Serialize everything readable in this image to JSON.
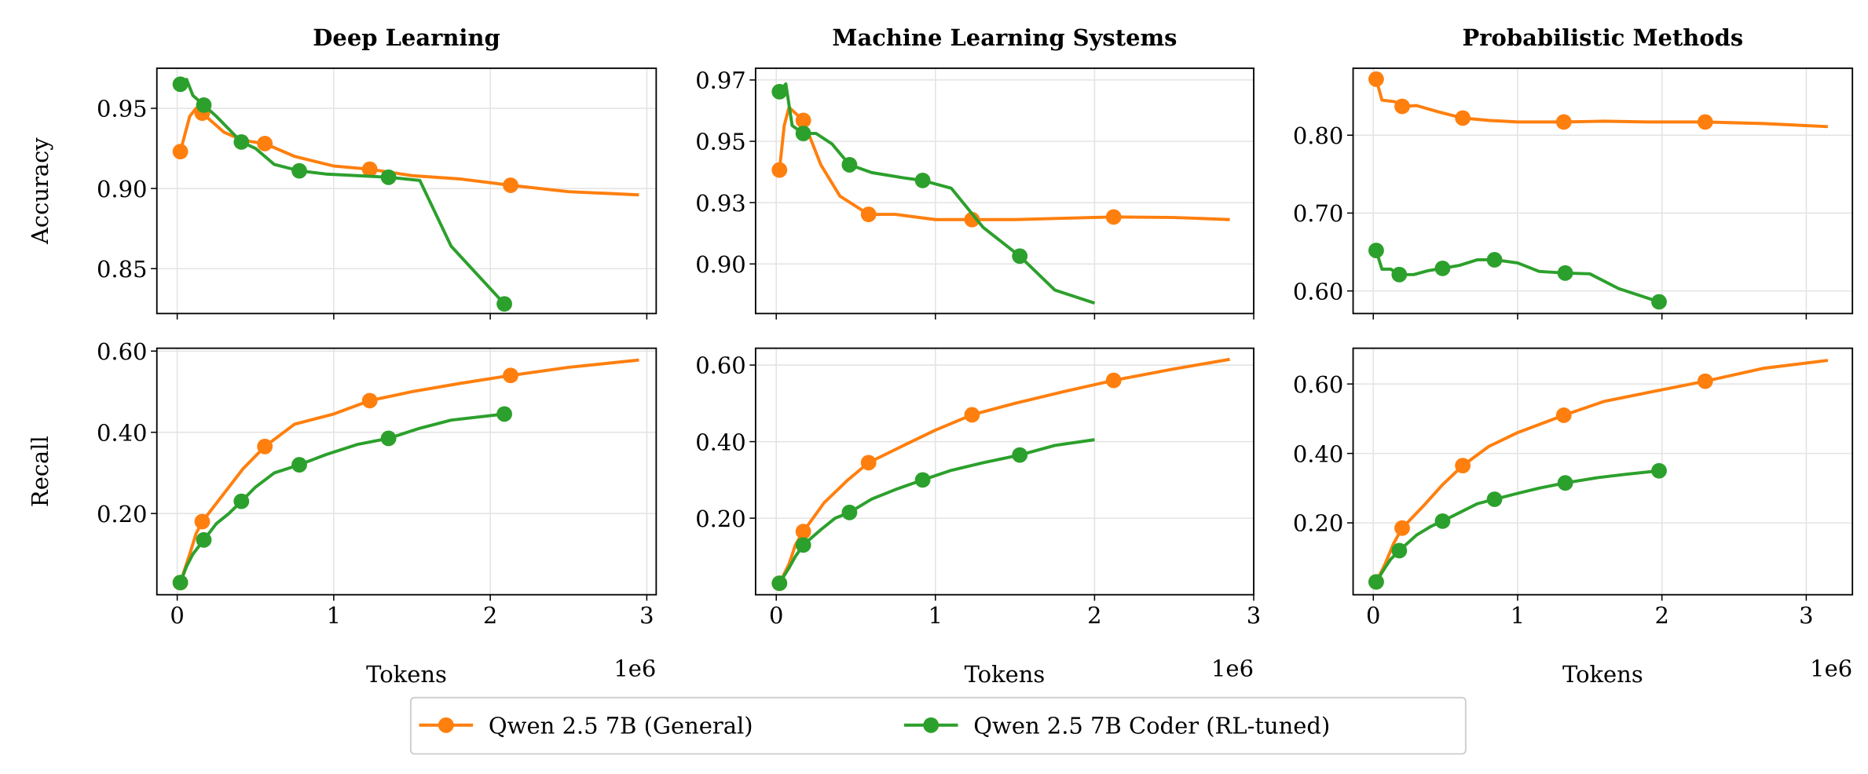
{
  "chart_data": [
    {
      "type": "line",
      "title": "Deep Learning",
      "ylabel": "Accuracy",
      "xlim": [
        -0.13,
        3.06
      ],
      "ylim": [
        0.822,
        0.975
      ],
      "xticks": [
        0,
        1,
        2,
        3
      ],
      "xticklabels": false,
      "yticks": [
        0.85,
        {
          "value": 0.9,
          "label": "0.90"
        },
        0.95
      ],
      "grid": true,
      "markevery": 3,
      "series": [
        {
          "color": "#ff7f0e",
          "x": [
            0.02,
            0.08,
            0.12,
            0.16,
            0.3,
            0.42,
            0.56,
            0.75,
            1.0,
            1.23,
            1.5,
            1.8,
            2.13,
            2.5,
            2.95
          ],
          "values": [
            0.923,
            0.945,
            0.95,
            0.947,
            0.935,
            0.93,
            0.928,
            0.92,
            0.914,
            0.912,
            0.908,
            0.906,
            0.902,
            0.898,
            0.896
          ]
        },
        {
          "color": "#2ca02c",
          "x": [
            0.02,
            0.06,
            0.1,
            0.17,
            0.25,
            0.33,
            0.41,
            0.5,
            0.62,
            0.78,
            0.95,
            1.15,
            1.35,
            1.55,
            1.75,
            2.09
          ],
          "values": [
            0.965,
            0.968,
            0.958,
            0.952,
            0.945,
            0.937,
            0.929,
            0.925,
            0.915,
            0.911,
            0.909,
            0.908,
            0.907,
            0.905,
            0.864,
            0.828
          ]
        }
      ]
    },
    {
      "type": "line",
      "title": "Machine Learning Systems",
      "xlim": [
        -0.13,
        3.0
      ],
      "ylim": [
        0.883,
        0.977
      ],
      "xticks": [
        0,
        1,
        2,
        3
      ],
      "xticklabels": false,
      "yticks": [
        {
          "value": 0.902,
          "label": "0.90"
        },
        {
          "value": 0.9255,
          "label": "0.93"
        },
        {
          "value": 0.949,
          "label": "0.95"
        },
        {
          "value": 0.9725,
          "label": "0.97"
        }
      ],
      "grid": true,
      "markevery": 3,
      "series": [
        {
          "color": "#ff7f0e",
          "x": [
            0.02,
            0.05,
            0.08,
            0.17,
            0.28,
            0.4,
            0.58,
            0.75,
            1.0,
            1.23,
            1.5,
            1.8,
            2.12,
            2.5,
            2.85
          ],
          "values": [
            0.938,
            0.955,
            0.962,
            0.957,
            0.94,
            0.928,
            0.921,
            0.921,
            0.919,
            0.919,
            0.919,
            0.9195,
            0.92,
            0.9198,
            0.919
          ]
        },
        {
          "color": "#2ca02c",
          "x": [
            0.02,
            0.06,
            0.1,
            0.17,
            0.25,
            0.35,
            0.46,
            0.6,
            0.8,
            0.92,
            1.1,
            1.3,
            1.53,
            1.75,
            2.0
          ],
          "values": [
            0.968,
            0.971,
            0.955,
            0.952,
            0.952,
            0.948,
            0.94,
            0.937,
            0.935,
            0.934,
            0.931,
            0.916,
            0.905,
            0.892,
            0.887
          ]
        }
      ]
    },
    {
      "type": "line",
      "title": "Probabilistic Methods",
      "xlim": [
        -0.14,
        3.32
      ],
      "ylim": [
        0.571,
        0.886
      ],
      "xticks": [
        0,
        1,
        2,
        3
      ],
      "xticklabels": false,
      "yticks": [
        {
          "value": 0.6,
          "label": "0.60"
        },
        {
          "value": 0.7,
          "label": "0.70"
        },
        {
          "value": 0.8,
          "label": "0.80"
        }
      ],
      "grid": true,
      "markevery": 3,
      "series": [
        {
          "color": "#ff7f0e",
          "x": [
            0.02,
            0.06,
            0.15,
            0.2,
            0.3,
            0.45,
            0.62,
            0.8,
            1.0,
            1.32,
            1.6,
            1.9,
            2.3,
            2.7,
            3.15
          ],
          "values": [
            0.872,
            0.845,
            0.843,
            0.837,
            0.838,
            0.83,
            0.822,
            0.819,
            0.817,
            0.817,
            0.818,
            0.817,
            0.817,
            0.815,
            0.811
          ]
        },
        {
          "color": "#2ca02c",
          "x": [
            0.02,
            0.06,
            0.12,
            0.18,
            0.28,
            0.38,
            0.48,
            0.6,
            0.72,
            0.84,
            1.0,
            1.15,
            1.33,
            1.5,
            1.7,
            1.98
          ],
          "values": [
            0.652,
            0.628,
            0.628,
            0.621,
            0.621,
            0.626,
            0.629,
            0.633,
            0.64,
            0.64,
            0.636,
            0.625,
            0.623,
            0.622,
            0.603,
            0.586
          ]
        }
      ]
    },
    {
      "type": "line",
      "ylabel": "Recall",
      "xlabel": "Tokens",
      "x_offset_label": "1e6",
      "xlim": [
        -0.13,
        3.06
      ],
      "ylim": [
        0.0,
        0.607
      ],
      "xticks": [
        0,
        1,
        2,
        3
      ],
      "xticklabels": true,
      "yticks": [
        {
          "value": 0.2,
          "label": "0.20"
        },
        {
          "value": 0.4,
          "label": "0.40"
        },
        {
          "value": 0.6,
          "label": "0.60"
        }
      ],
      "grid": true,
      "markevery": 3,
      "series": [
        {
          "color": "#ff7f0e",
          "x": [
            0.02,
            0.08,
            0.12,
            0.16,
            0.3,
            0.42,
            0.56,
            0.75,
            1.0,
            1.23,
            1.5,
            1.8,
            2.13,
            2.5,
            2.95
          ],
          "values": [
            0.03,
            0.1,
            0.15,
            0.18,
            0.25,
            0.31,
            0.365,
            0.42,
            0.445,
            0.478,
            0.5,
            0.52,
            0.54,
            0.56,
            0.578
          ]
        },
        {
          "color": "#2ca02c",
          "x": [
            0.02,
            0.06,
            0.1,
            0.17,
            0.25,
            0.33,
            0.41,
            0.5,
            0.62,
            0.78,
            0.95,
            1.15,
            1.35,
            1.55,
            1.75,
            2.09
          ],
          "values": [
            0.03,
            0.07,
            0.1,
            0.135,
            0.175,
            0.2,
            0.23,
            0.265,
            0.3,
            0.32,
            0.345,
            0.37,
            0.385,
            0.41,
            0.43,
            0.445
          ]
        }
      ]
    },
    {
      "type": "line",
      "xlabel": "Tokens",
      "x_offset_label": "1e6",
      "xlim": [
        -0.13,
        3.0
      ],
      "ylim": [
        0.0,
        0.644
      ],
      "xticks": [
        0,
        1,
        2,
        3
      ],
      "xticklabels": true,
      "yticks": [
        {
          "value": 0.2,
          "label": "0.20"
        },
        {
          "value": 0.4,
          "label": "0.40"
        },
        {
          "value": 0.6,
          "label": "0.60"
        }
      ],
      "grid": true,
      "markevery": 3,
      "series": [
        {
          "color": "#ff7f0e",
          "x": [
            0.02,
            0.08,
            0.12,
            0.17,
            0.3,
            0.45,
            0.58,
            0.8,
            1.0,
            1.23,
            1.5,
            1.8,
            2.12,
            2.5,
            2.85
          ],
          "values": [
            0.03,
            0.08,
            0.13,
            0.165,
            0.24,
            0.3,
            0.345,
            0.39,
            0.43,
            0.47,
            0.5,
            0.53,
            0.56,
            0.59,
            0.615
          ]
        },
        {
          "color": "#2ca02c",
          "x": [
            0.02,
            0.08,
            0.12,
            0.17,
            0.28,
            0.37,
            0.46,
            0.6,
            0.75,
            0.92,
            1.1,
            1.3,
            1.53,
            1.75,
            2.0
          ],
          "values": [
            0.03,
            0.07,
            0.1,
            0.13,
            0.17,
            0.2,
            0.215,
            0.25,
            0.275,
            0.3,
            0.325,
            0.345,
            0.365,
            0.39,
            0.405
          ]
        }
      ]
    },
    {
      "type": "line",
      "xlabel": "Tokens",
      "x_offset_label": "1e6",
      "xlim": [
        -0.14,
        3.32
      ],
      "ylim": [
        -0.007,
        0.703
      ],
      "xticks": [
        0,
        1,
        2,
        3
      ],
      "xticklabels": true,
      "yticks": [
        {
          "value": 0.2,
          "label": "0.20"
        },
        {
          "value": 0.4,
          "label": "0.40"
        },
        {
          "value": 0.6,
          "label": "0.60"
        }
      ],
      "grid": true,
      "markevery": 3,
      "series": [
        {
          "color": "#ff7f0e",
          "x": [
            0.02,
            0.08,
            0.14,
            0.2,
            0.35,
            0.48,
            0.62,
            0.8,
            1.0,
            1.32,
            1.6,
            1.9,
            2.3,
            2.7,
            3.15
          ],
          "values": [
            0.03,
            0.08,
            0.14,
            0.185,
            0.25,
            0.31,
            0.365,
            0.42,
            0.46,
            0.51,
            0.55,
            0.575,
            0.608,
            0.645,
            0.668
          ]
        },
        {
          "color": "#2ca02c",
          "x": [
            0.02,
            0.08,
            0.12,
            0.18,
            0.3,
            0.4,
            0.48,
            0.6,
            0.72,
            0.84,
            1.0,
            1.15,
            1.33,
            1.55,
            1.75,
            1.98
          ],
          "values": [
            0.03,
            0.07,
            0.095,
            0.12,
            0.165,
            0.19,
            0.205,
            0.23,
            0.255,
            0.268,
            0.285,
            0.3,
            0.315,
            0.33,
            0.34,
            0.35
          ]
        }
      ]
    }
  ],
  "legend": {
    "loc": "lower center",
    "entries": [
      {
        "name": "Qwen 2.5 7B (General)",
        "color": "#ff7f0e"
      },
      {
        "name": "Qwen 2.5 7B Coder (RL-tuned)",
        "color": "#2ca02c"
      }
    ]
  }
}
